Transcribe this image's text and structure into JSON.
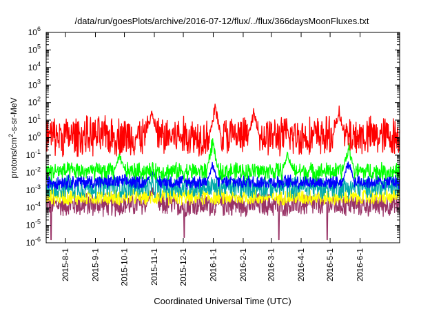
{
  "chart_data": {
    "type": "line",
    "title": "/data/run/goesPlots/archive/2016-07-12/flux/../flux/366daysMoonFluxes.txt",
    "xlabel": "Coordinated Universal Time (UTC)",
    "ylabel": {
      "pre": "protons/cm",
      "sup": "2",
      "post": "-s-sr-MeV"
    },
    "yscale": "log",
    "ylim": [
      1e-06,
      1000000.0
    ],
    "xlim": [
      "2015-07-12",
      "2016-07-12"
    ],
    "y_ticks": [
      {
        "value": 1e-06,
        "base": "10",
        "exp": "-6"
      },
      {
        "value": 1e-05,
        "base": "10",
        "exp": "-5"
      },
      {
        "value": 0.0001,
        "base": "10",
        "exp": "-4"
      },
      {
        "value": 0.001,
        "base": "10",
        "exp": "-3"
      },
      {
        "value": 0.01,
        "base": "10",
        "exp": "-2"
      },
      {
        "value": 0.1,
        "base": "10",
        "exp": "-1"
      },
      {
        "value": 1,
        "base": "10",
        "exp": "0"
      },
      {
        "value": 10.0,
        "base": "10",
        "exp": "1"
      },
      {
        "value": 100.0,
        "base": "10",
        "exp": "2"
      },
      {
        "value": 1000.0,
        "base": "10",
        "exp": "3"
      },
      {
        "value": 10000.0,
        "base": "10",
        "exp": "4"
      },
      {
        "value": 100000.0,
        "base": "10",
        "exp": "5"
      },
      {
        "value": 1000000.0,
        "base": "10",
        "exp": "6"
      }
    ],
    "x_ticks": [
      "2015-8-1",
      "2015-9-1",
      "2015-10-1",
      "2015-11-1",
      "2015-12-1",
      "2016-1-1",
      "2016-2-1",
      "2016-3-1",
      "2016-4-1",
      "2016-5-1",
      "2016-6-1"
    ],
    "x_tick_dates": [
      "2015-08-01",
      "2015-09-01",
      "2015-10-01",
      "2015-11-01",
      "2015-12-01",
      "2016-01-01",
      "2016-02-01",
      "2016-03-01",
      "2016-04-01",
      "2016-05-01",
      "2016-06-01"
    ],
    "grid": false,
    "series": [
      {
        "color": "#993366",
        "base": 0.00015,
        "spread": 0.75,
        "spikes": [
          {
            "x": "2015-10-30",
            "y": 0.002
          }
        ],
        "dips": [
          {
            "x": "2015-07-17",
            "y": 1.5e-06
          },
          {
            "x": "2015-12-02",
            "y": 2e-06
          },
          {
            "x": "2016-03-09",
            "y": 1.5e-06
          },
          {
            "x": "2016-04-28",
            "y": 1.5e-06
          }
        ]
      },
      {
        "color": "#ffff00",
        "base": 0.0004,
        "spread": 0.5,
        "spikes": [],
        "dips": []
      },
      {
        "color": "#00aaaa",
        "base": 0.0015,
        "spread": 0.7,
        "spikes": [],
        "dips": []
      },
      {
        "color": "#0000ff",
        "base": 0.003,
        "spread": 0.45,
        "spikes": [
          {
            "x": "2015-10-30",
            "y": 0.02
          },
          {
            "x": "2015-12-31",
            "y": 0.05
          },
          {
            "x": "2016-05-20",
            "y": 0.1
          }
        ],
        "dips": []
      },
      {
        "color": "#00ff00",
        "base": 0.012,
        "spread": 0.55,
        "spikes": [
          {
            "x": "2015-09-26",
            "y": 0.15
          },
          {
            "x": "2015-12-31",
            "y": 2
          },
          {
            "x": "2016-03-18",
            "y": 0.2
          },
          {
            "x": "2016-05-20",
            "y": 1
          }
        ],
        "dips": []
      },
      {
        "color": "#ff0000",
        "base": 1.2,
        "spread": 1.25,
        "spikes": [
          {
            "x": "2015-10-29",
            "y": 100
          },
          {
            "x": "2016-01-03",
            "y": 150
          },
          {
            "x": "2016-02-12",
            "y": 60
          },
          {
            "x": "2016-05-10",
            "y": 90
          }
        ],
        "dips": []
      }
    ]
  }
}
